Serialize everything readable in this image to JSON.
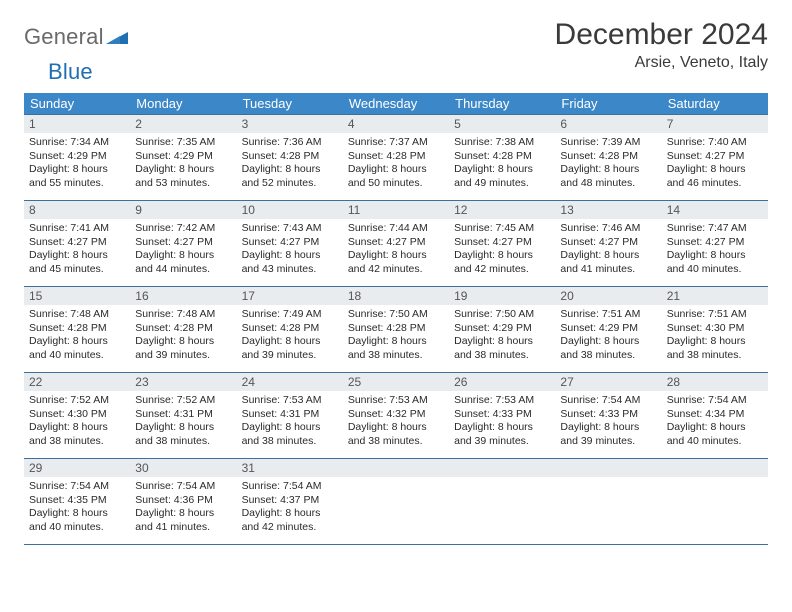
{
  "logo": {
    "general": "General",
    "blue": "Blue"
  },
  "title": "December 2024",
  "location": "Arsie, Veneto, Italy",
  "day_headers": [
    "Sunday",
    "Monday",
    "Tuesday",
    "Wednesday",
    "Thursday",
    "Friday",
    "Saturday"
  ],
  "colors": {
    "header_bg": "#3b87c8",
    "header_fg": "#ffffff",
    "daynum_bg": "#e9ecef",
    "row_border": "#3b6fa0",
    "logo_gray": "#6a6a6a",
    "logo_blue": "#1f6fb2"
  },
  "weeks": [
    [
      {
        "n": "1",
        "sr": "Sunrise: 7:34 AM",
        "ss": "Sunset: 4:29 PM",
        "dl": "Daylight: 8 hours and 55 minutes."
      },
      {
        "n": "2",
        "sr": "Sunrise: 7:35 AM",
        "ss": "Sunset: 4:29 PM",
        "dl": "Daylight: 8 hours and 53 minutes."
      },
      {
        "n": "3",
        "sr": "Sunrise: 7:36 AM",
        "ss": "Sunset: 4:28 PM",
        "dl": "Daylight: 8 hours and 52 minutes."
      },
      {
        "n": "4",
        "sr": "Sunrise: 7:37 AM",
        "ss": "Sunset: 4:28 PM",
        "dl": "Daylight: 8 hours and 50 minutes."
      },
      {
        "n": "5",
        "sr": "Sunrise: 7:38 AM",
        "ss": "Sunset: 4:28 PM",
        "dl": "Daylight: 8 hours and 49 minutes."
      },
      {
        "n": "6",
        "sr": "Sunrise: 7:39 AM",
        "ss": "Sunset: 4:28 PM",
        "dl": "Daylight: 8 hours and 48 minutes."
      },
      {
        "n": "7",
        "sr": "Sunrise: 7:40 AM",
        "ss": "Sunset: 4:27 PM",
        "dl": "Daylight: 8 hours and 46 minutes."
      }
    ],
    [
      {
        "n": "8",
        "sr": "Sunrise: 7:41 AM",
        "ss": "Sunset: 4:27 PM",
        "dl": "Daylight: 8 hours and 45 minutes."
      },
      {
        "n": "9",
        "sr": "Sunrise: 7:42 AM",
        "ss": "Sunset: 4:27 PM",
        "dl": "Daylight: 8 hours and 44 minutes."
      },
      {
        "n": "10",
        "sr": "Sunrise: 7:43 AM",
        "ss": "Sunset: 4:27 PM",
        "dl": "Daylight: 8 hours and 43 minutes."
      },
      {
        "n": "11",
        "sr": "Sunrise: 7:44 AM",
        "ss": "Sunset: 4:27 PM",
        "dl": "Daylight: 8 hours and 42 minutes."
      },
      {
        "n": "12",
        "sr": "Sunrise: 7:45 AM",
        "ss": "Sunset: 4:27 PM",
        "dl": "Daylight: 8 hours and 42 minutes."
      },
      {
        "n": "13",
        "sr": "Sunrise: 7:46 AM",
        "ss": "Sunset: 4:27 PM",
        "dl": "Daylight: 8 hours and 41 minutes."
      },
      {
        "n": "14",
        "sr": "Sunrise: 7:47 AM",
        "ss": "Sunset: 4:27 PM",
        "dl": "Daylight: 8 hours and 40 minutes."
      }
    ],
    [
      {
        "n": "15",
        "sr": "Sunrise: 7:48 AM",
        "ss": "Sunset: 4:28 PM",
        "dl": "Daylight: 8 hours and 40 minutes."
      },
      {
        "n": "16",
        "sr": "Sunrise: 7:48 AM",
        "ss": "Sunset: 4:28 PM",
        "dl": "Daylight: 8 hours and 39 minutes."
      },
      {
        "n": "17",
        "sr": "Sunrise: 7:49 AM",
        "ss": "Sunset: 4:28 PM",
        "dl": "Daylight: 8 hours and 39 minutes."
      },
      {
        "n": "18",
        "sr": "Sunrise: 7:50 AM",
        "ss": "Sunset: 4:28 PM",
        "dl": "Daylight: 8 hours and 38 minutes."
      },
      {
        "n": "19",
        "sr": "Sunrise: 7:50 AM",
        "ss": "Sunset: 4:29 PM",
        "dl": "Daylight: 8 hours and 38 minutes."
      },
      {
        "n": "20",
        "sr": "Sunrise: 7:51 AM",
        "ss": "Sunset: 4:29 PM",
        "dl": "Daylight: 8 hours and 38 minutes."
      },
      {
        "n": "21",
        "sr": "Sunrise: 7:51 AM",
        "ss": "Sunset: 4:30 PM",
        "dl": "Daylight: 8 hours and 38 minutes."
      }
    ],
    [
      {
        "n": "22",
        "sr": "Sunrise: 7:52 AM",
        "ss": "Sunset: 4:30 PM",
        "dl": "Daylight: 8 hours and 38 minutes."
      },
      {
        "n": "23",
        "sr": "Sunrise: 7:52 AM",
        "ss": "Sunset: 4:31 PM",
        "dl": "Daylight: 8 hours and 38 minutes."
      },
      {
        "n": "24",
        "sr": "Sunrise: 7:53 AM",
        "ss": "Sunset: 4:31 PM",
        "dl": "Daylight: 8 hours and 38 minutes."
      },
      {
        "n": "25",
        "sr": "Sunrise: 7:53 AM",
        "ss": "Sunset: 4:32 PM",
        "dl": "Daylight: 8 hours and 38 minutes."
      },
      {
        "n": "26",
        "sr": "Sunrise: 7:53 AM",
        "ss": "Sunset: 4:33 PM",
        "dl": "Daylight: 8 hours and 39 minutes."
      },
      {
        "n": "27",
        "sr": "Sunrise: 7:54 AM",
        "ss": "Sunset: 4:33 PM",
        "dl": "Daylight: 8 hours and 39 minutes."
      },
      {
        "n": "28",
        "sr": "Sunrise: 7:54 AM",
        "ss": "Sunset: 4:34 PM",
        "dl": "Daylight: 8 hours and 40 minutes."
      }
    ],
    [
      {
        "n": "29",
        "sr": "Sunrise: 7:54 AM",
        "ss": "Sunset: 4:35 PM",
        "dl": "Daylight: 8 hours and 40 minutes."
      },
      {
        "n": "30",
        "sr": "Sunrise: 7:54 AM",
        "ss": "Sunset: 4:36 PM",
        "dl": "Daylight: 8 hours and 41 minutes."
      },
      {
        "n": "31",
        "sr": "Sunrise: 7:54 AM",
        "ss": "Sunset: 4:37 PM",
        "dl": "Daylight: 8 hours and 42 minutes."
      },
      {
        "n": "",
        "sr": "",
        "ss": "",
        "dl": "",
        "empty": true
      },
      {
        "n": "",
        "sr": "",
        "ss": "",
        "dl": "",
        "empty": true
      },
      {
        "n": "",
        "sr": "",
        "ss": "",
        "dl": "",
        "empty": true
      },
      {
        "n": "",
        "sr": "",
        "ss": "",
        "dl": "",
        "empty": true
      }
    ]
  ]
}
